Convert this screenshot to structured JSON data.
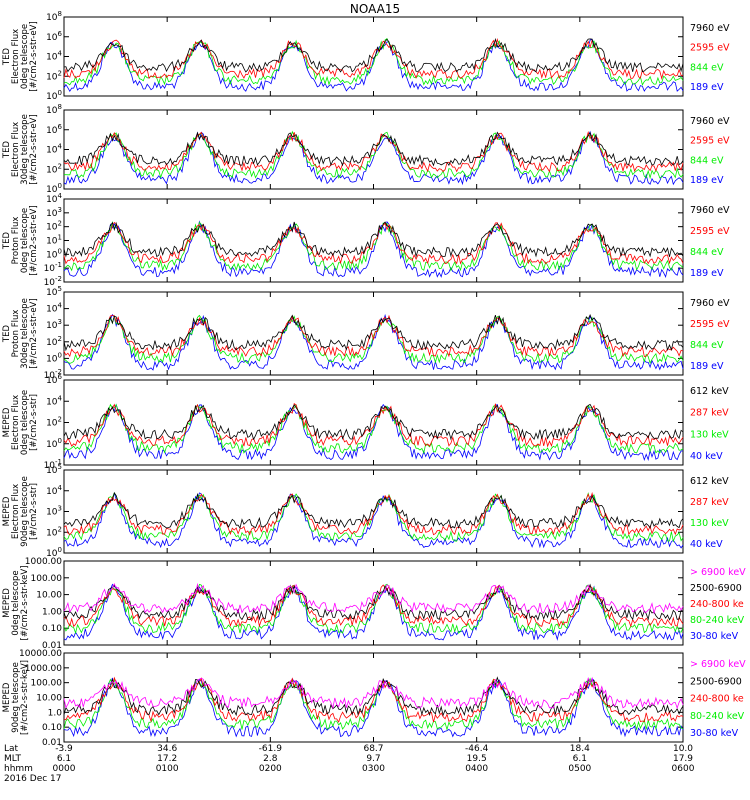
{
  "title": "NOAA15",
  "colors": {
    "blue": "#0000ff",
    "red": "#ff0000",
    "green": "#00ee00",
    "black": "#000000",
    "magenta": "#ff00ff"
  },
  "chart_data": [
    {
      "type": "line",
      "ylabel": [
        "TED",
        "Electron Flux",
        "0deg telescope",
        "[#/cm2-s-str-eV]"
      ],
      "yscale": "log",
      "ylim": [
        1,
        100000000
      ],
      "yticks": [
        "10^0",
        "10^2",
        "10^4",
        "10^6",
        "10^8"
      ],
      "series": [
        {
          "name": "7960 eV",
          "color": "black"
        },
        {
          "name": "2595 eV",
          "color": "red"
        },
        {
          "name": "844 eV",
          "color": "green"
        },
        {
          "name": "189 eV",
          "color": "blue"
        }
      ]
    },
    {
      "type": "line",
      "ylabel": [
        "TED",
        "Electron Flux",
        "30deg telescope",
        "[#/cm2-s-str-eV]"
      ],
      "yscale": "log",
      "ylim": [
        1,
        100000000
      ],
      "yticks": [
        "10^0",
        "10^2",
        "10^4",
        "10^6",
        "10^8"
      ],
      "series": [
        {
          "name": "7960 eV",
          "color": "black"
        },
        {
          "name": "2595 eV",
          "color": "red"
        },
        {
          "name": "844 eV",
          "color": "green"
        },
        {
          "name": "189 eV",
          "color": "blue"
        }
      ]
    },
    {
      "type": "line",
      "ylabel": [
        "TED",
        "Proton Flux",
        "0deg telescope",
        "[#/cm2-s-str-eV]"
      ],
      "yscale": "log",
      "ylim": [
        0.01,
        10000
      ],
      "yticks": [
        "10^-2",
        "10^-1",
        "10^0",
        "10^1",
        "10^2",
        "10^3",
        "10^4"
      ],
      "series": [
        {
          "name": "7960 eV",
          "color": "black"
        },
        {
          "name": "2595 eV",
          "color": "red"
        },
        {
          "name": "844 eV",
          "color": "green"
        },
        {
          "name": "189 eV",
          "color": "blue"
        }
      ]
    },
    {
      "type": "line",
      "ylabel": [
        "TED",
        "Proton Flux",
        "30deg telescope",
        "[#/cm2-s-str-eV]"
      ],
      "yscale": "log",
      "ylim": [
        0.01,
        100000
      ],
      "yticks": [
        "10^-2",
        "10^0",
        "10^2",
        "10^3",
        "10^4",
        "10^5"
      ],
      "series": [
        {
          "name": "7960 eV",
          "color": "black"
        },
        {
          "name": "2595 eV",
          "color": "red"
        },
        {
          "name": "844 eV",
          "color": "green"
        },
        {
          "name": "189 eV",
          "color": "blue"
        }
      ]
    },
    {
      "type": "line",
      "ylabel": [
        "MEPED",
        "Electron Flux",
        "0deg telescope",
        "[#/cm2-s-str]"
      ],
      "yscale": "log",
      "ylim": [
        0.1,
        1000000
      ],
      "yticks": [
        "10^-1",
        "10^0",
        "10^2",
        "10^4",
        "10^6"
      ],
      "series": [
        {
          "name": "612 keV",
          "color": "black"
        },
        {
          "name": "287 keV",
          "color": "red"
        },
        {
          "name": "130 keV",
          "color": "green"
        },
        {
          "name": "40 keV",
          "color": "blue"
        }
      ]
    },
    {
      "type": "line",
      "ylabel": [
        "MEPED",
        "Electron Flux",
        "90deg telescope",
        "[#/cm2-s-str]"
      ],
      "yscale": "log",
      "ylim": [
        1,
        100000
      ],
      "yticks": [
        "10^0",
        "10^2",
        "10^3",
        "10^4",
        "10^5"
      ],
      "series": [
        {
          "name": "612 keV",
          "color": "black"
        },
        {
          "name": "287 keV",
          "color": "red"
        },
        {
          "name": "130 keV",
          "color": "green"
        },
        {
          "name": "40 keV",
          "color": "blue"
        }
      ]
    },
    {
      "type": "line",
      "ylabel": [
        "MEPED",
        "0deg telescope",
        "[#/cm2-s-str-keV]"
      ],
      "yscale": "log",
      "ylim": [
        0.01,
        1000
      ],
      "yticks": [
        "0.01",
        "0.10",
        "1.00",
        "10.00",
        "100.00",
        "1000.00"
      ],
      "series": [
        {
          "name": "> 6900 keV",
          "color": "magenta"
        },
        {
          "name": "2500-6900",
          "color": "black"
        },
        {
          "name": "240-800 ke",
          "color": "red"
        },
        {
          "name": "80-240 keV",
          "color": "green"
        },
        {
          "name": "30-80 keV",
          "color": "blue"
        }
      ]
    },
    {
      "type": "line",
      "ylabel": [
        "MEPED",
        "90deg telescope",
        "[#/cm2-s-str-keV]"
      ],
      "yscale": "log",
      "ylim": [
        0.01,
        10000
      ],
      "yticks": [
        "0.01",
        "0.10",
        "1.0",
        "10.00",
        "100.00",
        "1000.00",
        "10000.00"
      ],
      "series": [
        {
          "name": "> 6900 keV",
          "color": "magenta"
        },
        {
          "name": "2500-6900",
          "color": "black"
        },
        {
          "name": "240-800 ke",
          "color": "red"
        },
        {
          "name": "80-240 keV",
          "color": "green"
        },
        {
          "name": "30-80 keV",
          "color": "blue"
        }
      ]
    }
  ],
  "xaxis": {
    "row_labels": [
      "Lat",
      "MLT",
      "hhmm",
      "2016 Dec 17"
    ],
    "ticks": [
      {
        "lat": "-3.9",
        "mlt": "6.1",
        "hhmm": "0000"
      },
      {
        "lat": "34.6",
        "mlt": "17.2",
        "hhmm": "0100"
      },
      {
        "lat": "-61.9",
        "mlt": "2.8",
        "hhmm": "0200"
      },
      {
        "lat": "68.7",
        "mlt": "9.7",
        "hhmm": "0300"
      },
      {
        "lat": "-46.4",
        "mlt": "19.5",
        "hhmm": "0400"
      },
      {
        "lat": "18.4",
        "mlt": "6.1",
        "hhmm": "0500"
      },
      {
        "lat": "10.0",
        "mlt": "17.9",
        "hhmm": "0600"
      }
    ]
  }
}
